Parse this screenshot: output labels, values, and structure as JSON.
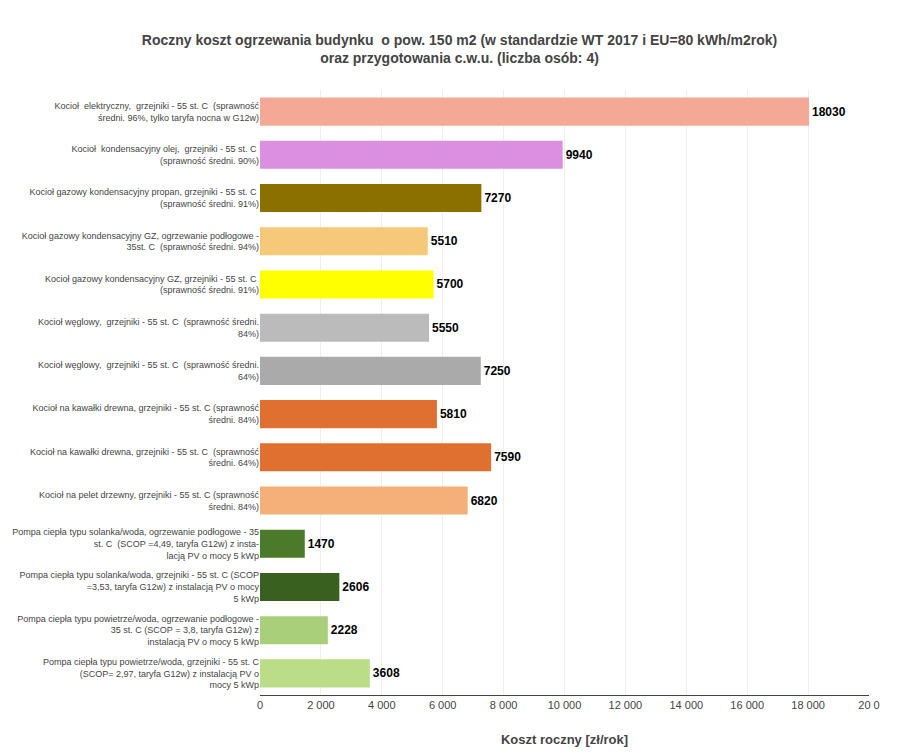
{
  "chart_data": {
    "type": "bar",
    "orientation": "horizontal",
    "title": "Roczny koszt ogrzewania budynku  o pow. 150 m2 (w standardzie WT 2017 i EU=80 kWh/m2rok)\noraz przygotowania c.w.u. (liczba osób: 4)",
    "xlabel": "Koszt roczny [zł/rok]",
    "categories": [
      "Kocioł  elektryczny,  grzejniki - 55 st. C  (sprawność średni. 96%, tylko taryfa nocna w G12w)",
      "Kocioł  kondensacyjny olej,  grzejniki - 55 st. C  (sprawność średni. 90%)",
      "Kocioł gazowy kondensacyjny propan, grzejniki - 55 st. C  (sprawność średni. 91%)",
      "Kocioł gazowy kondensacyjny GZ, ogrzewanie podłogowe - 35st. C  (sprawność średni. 94%)",
      "Kocioł gazowy kondensacyjny GZ, grzejniki - 55 st. C  (sprawność średni. 91%)",
      "Kocioł węglowy,  grzejniki - 55 st. C  (sprawność średni. 84%)",
      "Kocioł węglowy,  grzejniki - 55 st. C  (sprawność średni. 64%)",
      "Kocioł na kawałki drewna, grzejniki - 55 st. C (sprawność średni. 84%)",
      "Kocioł na kawałki drewna, grzejniki - 55 st. C  (sprawność średni. 64%)",
      "Kocioł na pelet drzewny, grzejniki - 55 st. C (sprawność średni. 84%)",
      "Pompa ciepła typu solanka/woda, ogrzewanie podłogowe - 35 st. C  (SCOP =4,49, taryfa G12w) z insta-\nlacją PV o mocy 5 kWp",
      "Pompa ciepła typu solanka/woda, grzejniki - 55 st. C (SCOP =3,53, taryfa G12w) z instalacją PV o mocy\n5 kWp",
      "Pompa ciepła typu powietrze/woda, ogrzewanie podłogowe - 35 st. C (SCOP = 3,8, taryfa G12w) z\ninstalacją PV o mocy 5 kWp",
      "Pompa ciepła typu powietrze/woda, grzejniki - 55 st. C (SCOP= 2,97, taryfa G12w) z instalacją PV o\nmocy 5 kWp"
    ],
    "values": [
      18030,
      9940,
      7270,
      5510,
      5700,
      5550,
      7250,
      5810,
      7590,
      6820,
      1470,
      2606,
      2228,
      3608
    ],
    "colors": [
      "#F4A997",
      "#DA8FE0",
      "#8B7000",
      "#F5C87A",
      "#FFFF00",
      "#BBBBBB",
      "#AAAAAA",
      "#E07030",
      "#E07030",
      "#F5B07A",
      "#4A7A2A",
      "#3A6020",
      "#AACF7A",
      "#BBDD88"
    ],
    "xlim": [
      0,
      20000
    ],
    "xticks": [
      0,
      {
        "value": 2000,
        "label": "2 000"
      },
      {
        "value": 4000,
        "label": "4 000"
      },
      {
        "value": 6000,
        "label": "6 000"
      },
      {
        "value": 8000,
        "label": "8 000"
      },
      {
        "value": 10000,
        "label": "10 000"
      },
      {
        "value": 12000,
        "label": "12 000"
      },
      {
        "value": 14000,
        "label": "14 000"
      },
      {
        "value": 16000,
        "label": "16 000"
      },
      {
        "value": 18000,
        "label": "18 000"
      },
      {
        "value": 20000,
        "label": "20 0"
      }
    ],
    "grid": true,
    "data_labels": true
  }
}
